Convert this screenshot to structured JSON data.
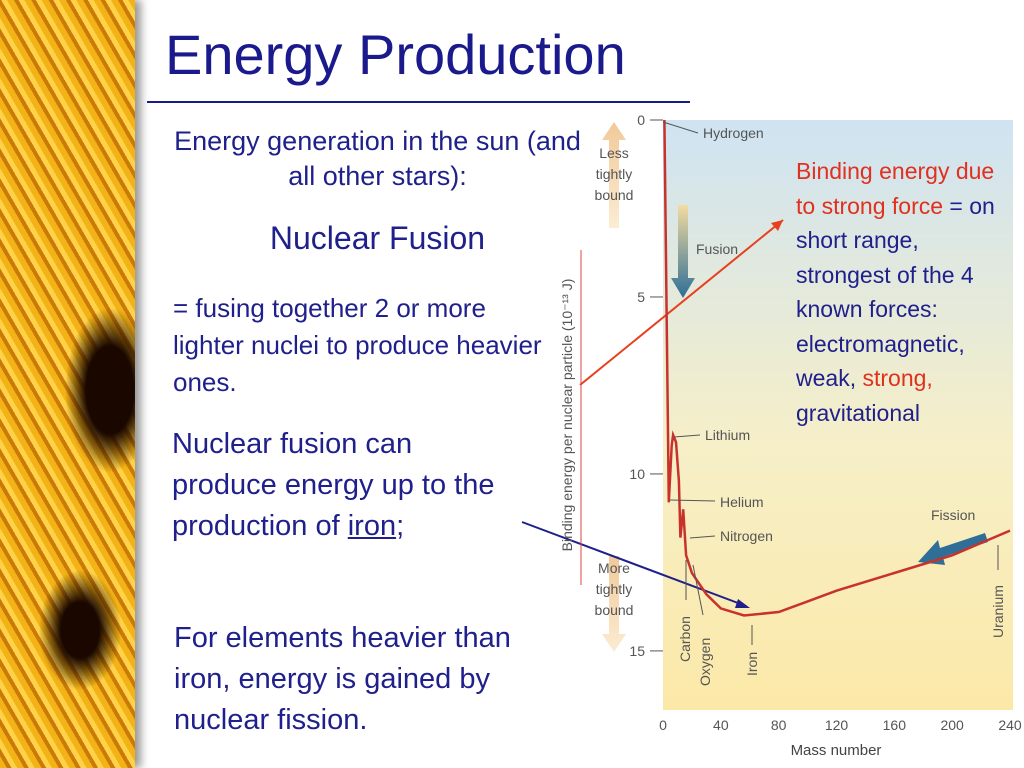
{
  "title": "Energy Production",
  "left_text": {
    "intro": "Energy generation in the sun (and all other stars):",
    "heading": "Nuclear Fusion",
    "definition": "= fusing together 2 or more lighter nuclei to produce heavier ones.",
    "fusion_limit": [
      "Nuclear fusion can produce energy up to the production of ",
      "iron",
      ";"
    ],
    "fission": "For elements heavier than iron, energy is gained by nuclear fission."
  },
  "right_text": [
    "Binding energy due to strong force",
    " = on short range, strongest of the 4 known forces: electromagnetic, weak, ",
    "strong,",
    " gravitational"
  ],
  "chart_data": {
    "type": "line",
    "ylabel": "Binding energy per nuclear particle (10⁻¹³ J)",
    "xlabel": "Mass number",
    "x": [
      1,
      4,
      6,
      7,
      9,
      11,
      12,
      14,
      16,
      20,
      30,
      40,
      56,
      80,
      100,
      120,
      160,
      200,
      240
    ],
    "values": [
      0,
      10.8,
      9.2,
      8.9,
      9.1,
      10.2,
      11.8,
      11.0,
      12.3,
      12.8,
      13.4,
      13.8,
      14.0,
      13.9,
      13.6,
      13.3,
      12.8,
      12.3,
      11.6
    ],
    "color": "#c8322d",
    "xlim": [
      0,
      240
    ],
    "ylim": [
      0,
      16.5
    ],
    "xticks": [
      0,
      40,
      80,
      120,
      160,
      200,
      240
    ],
    "yticks": [
      0,
      5,
      10,
      15
    ],
    "y_inverted": true,
    "element_labels": [
      "Hydrogen",
      "Lithium",
      "Helium",
      "Nitrogen",
      "Carbon",
      "Oxygen",
      "Iron",
      "Uranium"
    ],
    "process_labels": [
      "Fusion",
      "Fission"
    ],
    "bound_labels": [
      "Less tightly bound",
      "More tightly bound"
    ]
  }
}
